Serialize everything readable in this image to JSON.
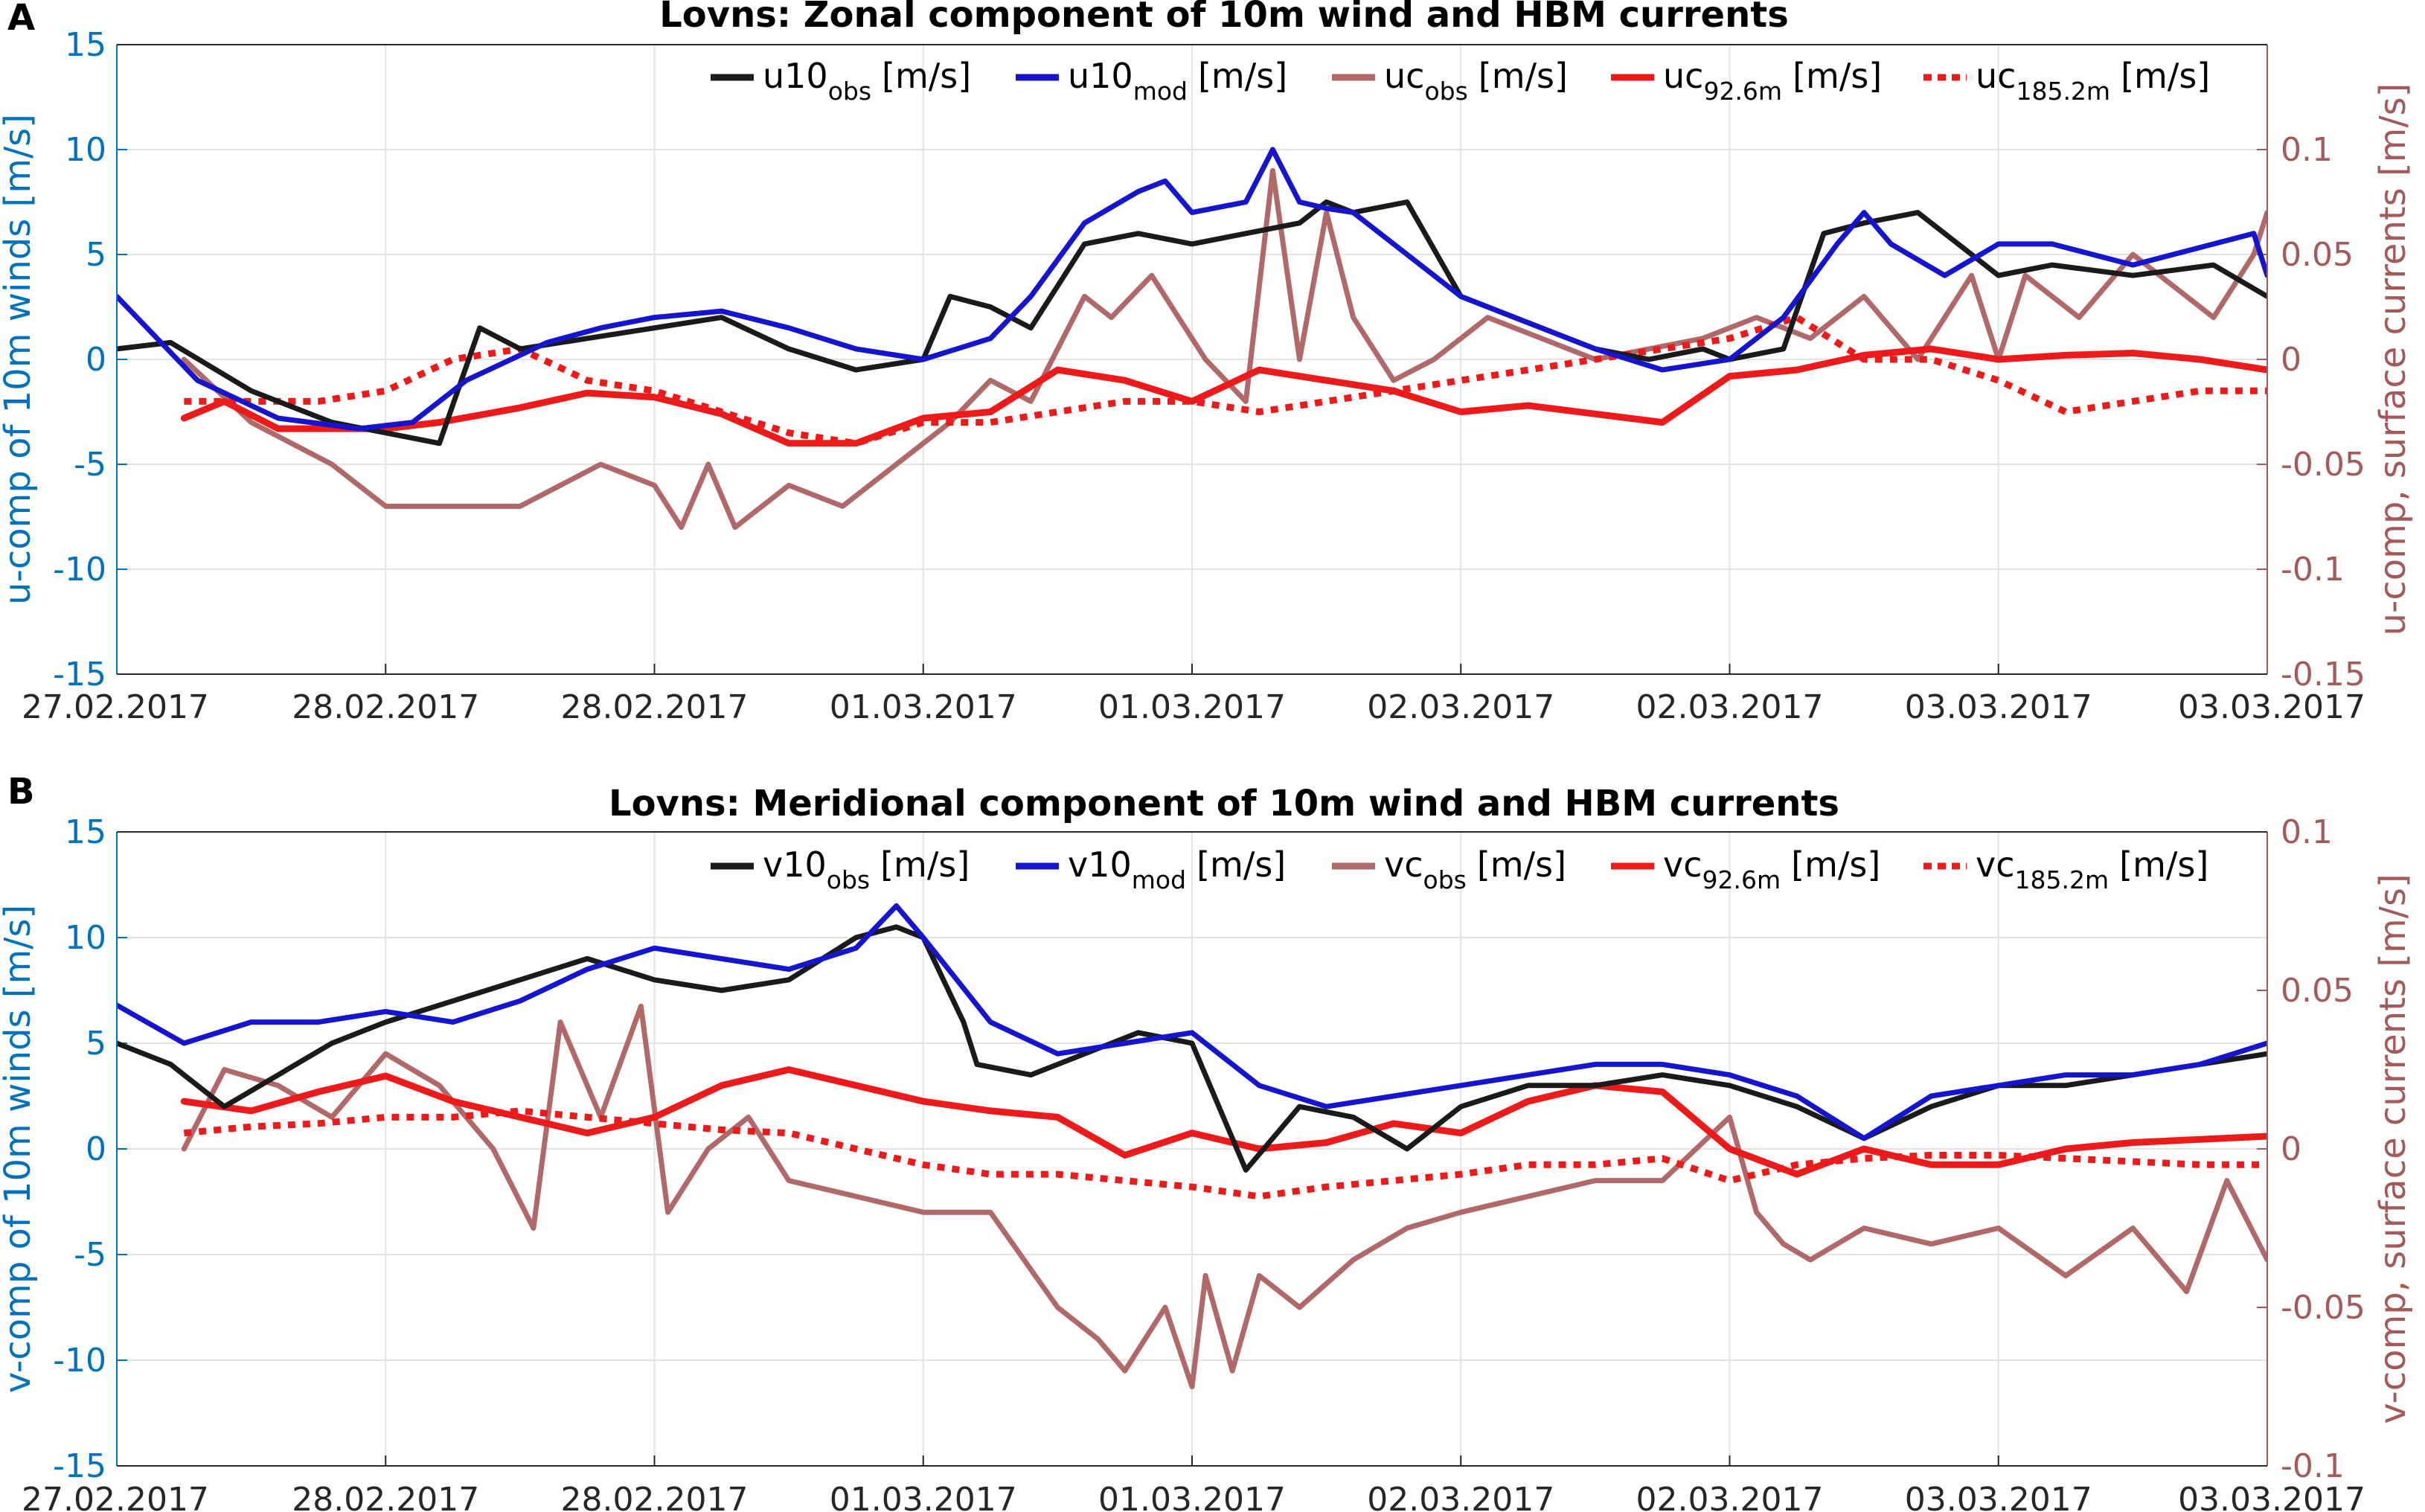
{
  "chart_data": [
    {
      "panel_label": "A",
      "type": "line",
      "title": "Lovns: Zonal component of 10m wind and HBM currents",
      "ylabel_left": "u-comp of 10m winds [m/s]",
      "ylabel_right": "u-comp, surface currents [m/s]",
      "ylim_left": [
        -15,
        15
      ],
      "yticks_left": [
        15,
        10,
        5,
        0,
        -5,
        -10,
        -15
      ],
      "ylim_right": [
        -0.15,
        0.15
      ],
      "yticks_right": [
        0.1,
        0.05,
        0,
        -0.05,
        -0.1,
        -0.15
      ],
      "x_range_days": [
        0,
        8
      ],
      "xtick_labels": [
        "27.02.2017",
        "28.02.2017",
        "28.02.2017",
        "01.03.2017",
        "01.03.2017",
        "02.03.2017",
        "02.03.2017",
        "03.03.2017",
        "03.03.2017"
      ],
      "grid": true,
      "legend_position": "top-right",
      "colors": {
        "obs_wind": "#1a1a1a",
        "mod_wind": "#1515d0",
        "obs_current": "#b06868",
        "model_current": "#ee1a1a",
        "left_axis": "#0072bd",
        "right_axis": "#a45a5a"
      },
      "series": [
        {
          "name": "u10",
          "sub": "obs",
          "unit": "[m/s]",
          "axis": "left",
          "color": "#1a1a1a",
          "style": "solid",
          "x": [
            0,
            0.2,
            0.5,
            0.8,
            1.0,
            1.2,
            1.35,
            1.5,
            1.75,
            2.0,
            2.25,
            2.5,
            2.75,
            3.0,
            3.1,
            3.25,
            3.4,
            3.6,
            3.8,
            4.0,
            4.2,
            4.4,
            4.5,
            4.6,
            4.8,
            5.0,
            5.2,
            5.5,
            5.7,
            5.9,
            6.0,
            6.2,
            6.35,
            6.5,
            6.7,
            7.0,
            7.2,
            7.5,
            7.8,
            8.0
          ],
          "y": [
            0.5,
            0.8,
            -1.5,
            -3.0,
            -3.5,
            -4.0,
            1.5,
            0.5,
            1.0,
            1.5,
            2.0,
            0.5,
            -0.5,
            0.0,
            3.0,
            2.5,
            1.5,
            5.5,
            6.0,
            5.5,
            6.0,
            6.5,
            7.5,
            7.0,
            7.5,
            3.0,
            2.0,
            0.5,
            0.0,
            0.5,
            0.0,
            0.5,
            6.0,
            6.5,
            7.0,
            4.0,
            4.5,
            4.0,
            4.5,
            3.0
          ]
        },
        {
          "name": "u10",
          "sub": "mod",
          "unit": "[m/s]",
          "axis": "left",
          "color": "#1515d0",
          "style": "solid",
          "x": [
            0,
            0.3,
            0.6,
            0.9,
            1.1,
            1.3,
            1.6,
            1.8,
            2.0,
            2.25,
            2.5,
            2.75,
            3.0,
            3.25,
            3.4,
            3.6,
            3.8,
            3.9,
            4.0,
            4.2,
            4.3,
            4.4,
            4.5,
            4.6,
            4.8,
            5.0,
            5.2,
            5.5,
            5.75,
            6.0,
            6.2,
            6.4,
            6.5,
            6.6,
            6.8,
            7.0,
            7.2,
            7.5,
            7.8,
            7.95,
            8.0
          ],
          "y": [
            3.0,
            -1.0,
            -2.8,
            -3.3,
            -3.0,
            -1.0,
            0.8,
            1.5,
            2.0,
            2.3,
            1.5,
            0.5,
            0.0,
            1.0,
            3.0,
            6.5,
            8.0,
            8.5,
            7.0,
            7.5,
            10.0,
            7.5,
            7.2,
            7.0,
            5.0,
            3.0,
            2.0,
            0.5,
            -0.5,
            0.0,
            2.0,
            5.5,
            7.0,
            5.5,
            4.0,
            5.5,
            5.5,
            4.5,
            5.5,
            6.0,
            4.0
          ]
        },
        {
          "name": "uc",
          "sub": "obs",
          "unit": "[m/s]",
          "axis": "right",
          "color": "#b06868",
          "style": "solid",
          "x": [
            0.25,
            0.5,
            0.8,
            1.0,
            1.2,
            1.5,
            1.8,
            2.0,
            2.1,
            2.2,
            2.3,
            2.5,
            2.7,
            2.9,
            3.1,
            3.25,
            3.4,
            3.6,
            3.7,
            3.85,
            3.95,
            4.05,
            4.2,
            4.3,
            4.4,
            4.5,
            4.6,
            4.75,
            4.9,
            5.1,
            5.3,
            5.5,
            5.7,
            5.9,
            6.1,
            6.3,
            6.5,
            6.7,
            6.9,
            7.0,
            7.1,
            7.3,
            7.5,
            7.8,
            7.95,
            8.0
          ],
          "y": [
            0.0,
            -0.03,
            -0.05,
            -0.07,
            -0.07,
            -0.07,
            -0.05,
            -0.06,
            -0.08,
            -0.05,
            -0.08,
            -0.06,
            -0.07,
            -0.05,
            -0.03,
            -0.01,
            -0.02,
            0.03,
            0.02,
            0.04,
            0.02,
            0.0,
            -0.02,
            0.09,
            0.0,
            0.07,
            0.02,
            -0.01,
            0.0,
            0.02,
            0.01,
            0.0,
            0.005,
            0.01,
            0.02,
            0.01,
            0.03,
            0.0,
            0.04,
            0.0,
            0.04,
            0.02,
            0.05,
            0.02,
            0.05,
            0.07
          ]
        },
        {
          "name": "uc",
          "sub": "92.6m",
          "unit": "[m/s]",
          "axis": "right",
          "color": "#ee1a1a",
          "style": "solid",
          "x": [
            0.25,
            0.4,
            0.6,
            1.0,
            1.2,
            1.5,
            1.75,
            2.0,
            2.25,
            2.5,
            2.75,
            3.0,
            3.25,
            3.5,
            3.75,
            4.0,
            4.25,
            4.5,
            4.75,
            5.0,
            5.25,
            5.5,
            5.75,
            6.0,
            6.25,
            6.5,
            6.75,
            7.0,
            7.25,
            7.5,
            7.75,
            8.0
          ],
          "y": [
            -0.028,
            -0.02,
            -0.033,
            -0.033,
            -0.03,
            -0.023,
            -0.016,
            -0.018,
            -0.026,
            -0.04,
            -0.04,
            -0.028,
            -0.025,
            -0.005,
            -0.01,
            -0.02,
            -0.005,
            -0.01,
            -0.015,
            -0.025,
            -0.022,
            -0.026,
            -0.03,
            -0.008,
            -0.005,
            0.002,
            0.005,
            0.0,
            0.002,
            0.003,
            0.0,
            -0.005
          ]
        },
        {
          "name": "uc",
          "sub": "185.2m",
          "unit": "[m/s]",
          "axis": "right",
          "color": "#ee1a1a",
          "style": "dotted",
          "x": [
            0.25,
            0.5,
            0.75,
            1.0,
            1.25,
            1.5,
            1.75,
            2.0,
            2.25,
            2.5,
            2.75,
            3.0,
            3.25,
            3.5,
            3.75,
            4.0,
            4.25,
            4.5,
            4.75,
            5.0,
            5.25,
            5.5,
            5.75,
            6.0,
            6.25,
            6.5,
            6.75,
            7.0,
            7.25,
            7.5,
            7.75,
            8.0
          ],
          "y": [
            -0.02,
            -0.02,
            -0.02,
            -0.015,
            0.0,
            0.005,
            -0.01,
            -0.015,
            -0.025,
            -0.035,
            -0.04,
            -0.03,
            -0.03,
            -0.025,
            -0.02,
            -0.02,
            -0.025,
            -0.02,
            -0.015,
            -0.01,
            -0.005,
            0.0,
            0.005,
            0.01,
            0.02,
            0.0,
            0.0,
            -0.01,
            -0.025,
            -0.02,
            -0.015,
            -0.015
          ]
        }
      ]
    },
    {
      "panel_label": "B",
      "type": "line",
      "title": "Lovns: Meridional component of 10m wind and HBM currents",
      "ylabel_left": "v-comp of 10m winds [m/s]",
      "ylabel_right": "v-comp, surface currents [m/s]",
      "ylim_left": [
        -15,
        15
      ],
      "yticks_left": [
        15,
        10,
        5,
        0,
        -5,
        -10,
        -15
      ],
      "ylim_right": [
        -0.1,
        0.1
      ],
      "yticks_right": [
        0.1,
        0.05,
        0,
        -0.05,
        -0.1
      ],
      "x_range_days": [
        0,
        8
      ],
      "xtick_labels": [
        "27.02.2017",
        "28.02.2017",
        "28.02.2017",
        "01.03.2017",
        "01.03.2017",
        "02.03.2017",
        "02.03.2017",
        "03.03.2017",
        "03.03.2017"
      ],
      "grid": true,
      "legend_position": "top-right",
      "series": [
        {
          "name": "v10",
          "sub": "obs",
          "unit": "[m/s]",
          "axis": "left",
          "color": "#1a1a1a",
          "style": "solid",
          "x": [
            0,
            0.2,
            0.4,
            0.6,
            0.8,
            1.0,
            1.25,
            1.5,
            1.75,
            2.0,
            2.25,
            2.5,
            2.75,
            2.9,
            3.0,
            3.15,
            3.2,
            3.4,
            3.6,
            3.8,
            4.0,
            4.1,
            4.2,
            4.4,
            4.6,
            4.8,
            5.0,
            5.25,
            5.5,
            5.75,
            6.0,
            6.25,
            6.5,
            6.75,
            7.0,
            7.25,
            7.5,
            7.75,
            8.0
          ],
          "y": [
            5.0,
            4.0,
            2.0,
            3.5,
            5.0,
            6.0,
            7.0,
            8.0,
            9.0,
            8.0,
            7.5,
            8.0,
            10.0,
            10.5,
            10.0,
            6.0,
            4.0,
            3.5,
            4.5,
            5.5,
            5.0,
            2.0,
            -1.0,
            2.0,
            1.5,
            0.0,
            2.0,
            3.0,
            3.0,
            3.5,
            3.0,
            2.0,
            0.5,
            2.0,
            3.0,
            3.0,
            3.5,
            4.0,
            4.5
          ]
        },
        {
          "name": "v10",
          "sub": "mod",
          "unit": "[m/s]",
          "axis": "left",
          "color": "#1515d0",
          "style": "solid",
          "x": [
            0,
            0.25,
            0.5,
            0.75,
            1.0,
            1.25,
            1.5,
            1.75,
            2.0,
            2.25,
            2.5,
            2.75,
            2.9,
            3.0,
            3.25,
            3.5,
            3.75,
            4.0,
            4.25,
            4.5,
            4.75,
            5.0,
            5.25,
            5.5,
            5.75,
            6.0,
            6.25,
            6.5,
            6.75,
            7.0,
            7.25,
            7.5,
            7.75,
            8.0
          ],
          "y": [
            6.8,
            5.0,
            6.0,
            6.0,
            6.5,
            6.0,
            7.0,
            8.5,
            9.5,
            9.0,
            8.5,
            9.5,
            11.5,
            10.0,
            6.0,
            4.5,
            5.0,
            5.5,
            3.0,
            2.0,
            2.5,
            3.0,
            3.5,
            4.0,
            4.0,
            3.5,
            2.5,
            0.5,
            2.5,
            3.0,
            3.5,
            3.5,
            4.0,
            5.0
          ]
        },
        {
          "name": "vc",
          "sub": "obs",
          "unit": "[m/s]",
          "axis": "right",
          "color": "#b06868",
          "style": "solid",
          "x": [
            0.25,
            0.4,
            0.6,
            0.8,
            1.0,
            1.2,
            1.4,
            1.55,
            1.65,
            1.8,
            1.95,
            2.05,
            2.2,
            2.35,
            2.5,
            2.75,
            3.0,
            3.25,
            3.5,
            3.65,
            3.75,
            3.9,
            4.0,
            4.05,
            4.15,
            4.25,
            4.4,
            4.6,
            4.8,
            5.0,
            5.25,
            5.5,
            5.75,
            6.0,
            6.1,
            6.2,
            6.3,
            6.5,
            6.75,
            7.0,
            7.25,
            7.5,
            7.7,
            7.85,
            8.0
          ],
          "y": [
            0.0,
            0.025,
            0.02,
            0.01,
            0.03,
            0.02,
            0.0,
            -0.025,
            0.04,
            0.01,
            0.045,
            -0.02,
            0.0,
            0.01,
            -0.01,
            -0.015,
            -0.02,
            -0.02,
            -0.05,
            -0.06,
            -0.07,
            -0.05,
            -0.075,
            -0.04,
            -0.07,
            -0.04,
            -0.05,
            -0.035,
            -0.025,
            -0.02,
            -0.015,
            -0.01,
            -0.01,
            0.01,
            -0.02,
            -0.03,
            -0.035,
            -0.025,
            -0.03,
            -0.025,
            -0.04,
            -0.025,
            -0.045,
            -0.01,
            -0.035
          ]
        },
        {
          "name": "vc",
          "sub": "92.6m",
          "unit": "[m/s]",
          "axis": "right",
          "color": "#ee1a1a",
          "style": "solid",
          "x": [
            0.25,
            0.5,
            0.75,
            1.0,
            1.25,
            1.5,
            1.75,
            2.0,
            2.25,
            2.5,
            2.75,
            3.0,
            3.25,
            3.5,
            3.75,
            4.0,
            4.25,
            4.5,
            4.75,
            5.0,
            5.25,
            5.5,
            5.75,
            6.0,
            6.25,
            6.5,
            6.75,
            7.0,
            7.25,
            7.5,
            7.75,
            8.0
          ],
          "y": [
            0.015,
            0.012,
            0.018,
            0.023,
            0.015,
            0.01,
            0.005,
            0.01,
            0.02,
            0.025,
            0.02,
            0.015,
            0.012,
            0.01,
            -0.002,
            0.005,
            0.0,
            0.002,
            0.008,
            0.005,
            0.015,
            0.02,
            0.018,
            0.0,
            -0.008,
            0.0,
            -0.005,
            -0.005,
            0.0,
            0.002,
            0.003,
            0.004
          ]
        },
        {
          "name": "vc",
          "sub": "185.2m",
          "unit": "[m/s]",
          "axis": "right",
          "color": "#ee1a1a",
          "style": "dotted",
          "x": [
            0.25,
            0.5,
            0.75,
            1.0,
            1.25,
            1.5,
            1.75,
            2.0,
            2.25,
            2.5,
            2.75,
            3.0,
            3.25,
            3.5,
            3.75,
            4.0,
            4.25,
            4.5,
            4.75,
            5.0,
            5.25,
            5.5,
            5.75,
            6.0,
            6.25,
            6.5,
            6.75,
            7.0,
            7.25,
            7.5,
            7.75,
            8.0
          ],
          "y": [
            0.005,
            0.007,
            0.008,
            0.01,
            0.01,
            0.012,
            0.01,
            0.008,
            0.006,
            0.005,
            0.0,
            -0.005,
            -0.008,
            -0.008,
            -0.01,
            -0.012,
            -0.015,
            -0.012,
            -0.01,
            -0.008,
            -0.005,
            -0.005,
            -0.003,
            -0.01,
            -0.005,
            -0.003,
            -0.002,
            -0.002,
            -0.003,
            -0.004,
            -0.005,
            -0.005
          ]
        }
      ]
    }
  ]
}
